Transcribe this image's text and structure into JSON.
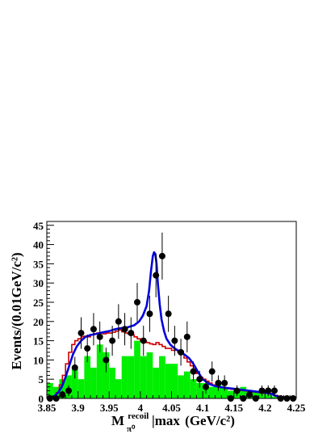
{
  "chart_data": {
    "type": "bar",
    "title": "",
    "xlabel": {
      "main": "M",
      "sup": "recoil",
      "sub": "π⁰",
      "tail": "|max",
      "unit": "(GeV/c²)"
    },
    "ylabel": "Events/(0.01GeV/c²)",
    "xlim": [
      3.85,
      4.25
    ],
    "ylim": [
      0,
      46
    ],
    "x_ticks": [
      3.85,
      3.9,
      3.95,
      4.0,
      4.05,
      4.1,
      4.15,
      4.2,
      4.25
    ],
    "x_tick_labels": [
      "3.85",
      "3.9",
      "3.95",
      "4",
      "4.05",
      "4.1",
      "4.15",
      "4.2",
      "4.25"
    ],
    "y_ticks": [
      0,
      5,
      10,
      15,
      20,
      25,
      30,
      35,
      40,
      45
    ],
    "y_tick_labels": [
      "0",
      "5",
      "10",
      "15",
      "20",
      "25",
      "30",
      "35",
      "40",
      "45"
    ],
    "grid": false,
    "colors": {
      "background_hist": "#00ee00",
      "signal_hist": "#cc0000",
      "fit": "#0000dd",
      "data": "#000000",
      "error_bar": "#000000"
    },
    "background_hist": {
      "bin_width": 0.01,
      "x": [
        3.855,
        3.865,
        3.875,
        3.885,
        3.895,
        3.905,
        3.915,
        3.925,
        3.935,
        3.945,
        3.955,
        3.965,
        3.975,
        3.985,
        3.995,
        4.005,
        4.015,
        4.025,
        4.035,
        4.045,
        4.055,
        4.065,
        4.075,
        4.085,
        4.095,
        4.105,
        4.115,
        4.125,
        4.135,
        4.145,
        4.155,
        4.165,
        4.175,
        4.185,
        4.195,
        4.205,
        4.215,
        4.225,
        4.235,
        4.245
      ],
      "values": [
        4,
        3,
        5,
        6,
        8,
        5,
        11,
        8,
        14,
        12,
        8,
        5,
        11,
        11,
        15,
        11,
        12,
        8,
        11,
        9,
        9,
        6,
        7,
        5,
        4,
        4,
        3,
        4,
        3,
        2,
        2,
        3,
        2,
        2,
        2,
        1,
        0.5,
        0.5,
        0.5,
        0.5
      ]
    },
    "signal_hist": {
      "bin_width": 0.005,
      "x": [
        3.8575,
        3.8625,
        3.8675,
        3.8725,
        3.8775,
        3.8825,
        3.8875,
        3.8925,
        3.8975,
        3.9025,
        3.9075,
        3.9125,
        3.9175,
        3.9225,
        3.9275,
        3.9325,
        3.9375,
        3.9425,
        3.9475,
        3.9525,
        3.9575,
        3.9625,
        3.9675,
        3.9725,
        3.9775,
        3.9825,
        3.9875,
        3.9925,
        3.9975,
        4.0025,
        4.0075,
        4.0125,
        4.0175,
        4.0225,
        4.0275,
        4.0325,
        4.0375,
        4.0425,
        4.0475,
        4.0525,
        4.0575,
        4.0625,
        4.0675,
        4.0725,
        4.0775,
        4.0825,
        4.0875,
        4.0925,
        4.0975,
        4.1025,
        4.1075,
        4.1125,
        4.1175,
        4.1225,
        4.1275,
        4.1325,
        4.1375,
        4.1425,
        4.1475,
        4.1525,
        4.1575,
        4.1625,
        4.1675,
        4.1725,
        4.1775,
        4.1825,
        4.1875,
        4.1925,
        4.1975,
        4.2025,
        4.2075,
        4.2125,
        4.2175,
        4.2225,
        4.2275,
        4.2325,
        4.2375,
        4.2425,
        4.2475
      ],
      "values": [
        0.2,
        0.5,
        1.5,
        3.5,
        6,
        9,
        12,
        14,
        15,
        15.5,
        16,
        16.2,
        16,
        16.5,
        16.8,
        17,
        17,
        16.8,
        17,
        17,
        17.2,
        17.5,
        17.8,
        17.3,
        17,
        16.8,
        16.5,
        16,
        15.5,
        15,
        14.8,
        14.5,
        14.2,
        14,
        14.5,
        14,
        13.5,
        13,
        13,
        12.5,
        12.5,
        12,
        11.5,
        10.5,
        9.5,
        8.5,
        7.5,
        6.5,
        5.5,
        5,
        4.5,
        4,
        3.5,
        3.2,
        3,
        2.8,
        2.6,
        2.5,
        2.4,
        2.3,
        2.2,
        2.1,
        2,
        1.9,
        1.8,
        1.7,
        1.6,
        1.5,
        1.4,
        1.3,
        1.2,
        1.0,
        0.8,
        0.6,
        0.4,
        0.3,
        0.2,
        0.1,
        0.1
      ]
    },
    "fit_curve": {
      "x": [
        3.855,
        3.862,
        3.868,
        3.874,
        3.88,
        3.886,
        3.892,
        3.898,
        3.905,
        3.912,
        3.92,
        3.93,
        3.94,
        3.95,
        3.96,
        3.97,
        3.98,
        3.99,
        3.998,
        4.004,
        4.01,
        4.014,
        4.017,
        4.02,
        4.022,
        4.024,
        4.026,
        4.028,
        4.031,
        4.034,
        4.038,
        4.042,
        4.048,
        4.055,
        4.062,
        4.07,
        4.078,
        4.085,
        4.092,
        4.1,
        4.11,
        4.12,
        4.13,
        4.14,
        4.15,
        4.16,
        4.17,
        4.18,
        4.19,
        4.2,
        4.21,
        4.215,
        4.222,
        4.23,
        4.24,
        4.25
      ],
      "y": [
        0.2,
        0.6,
        1.5,
        3,
        5.5,
        8.5,
        11.5,
        13.5,
        15,
        16,
        16.5,
        16.8,
        17.2,
        17.5,
        18,
        18.3,
        18.5,
        19,
        20,
        21.5,
        24,
        28,
        33,
        37,
        38,
        37.5,
        35,
        30,
        24.5,
        20.5,
        17.5,
        15.5,
        14,
        13,
        12.3,
        11.5,
        10.5,
        9,
        7,
        5,
        3.8,
        3.2,
        2.9,
        2.7,
        2.5,
        2.3,
        2.1,
        1.9,
        1.7,
        1.5,
        1.2,
        0.8,
        0.4,
        0.2,
        0.1,
        0
      ]
    },
    "data_points": {
      "x": [
        3.855,
        3.865,
        3.875,
        3.885,
        3.895,
        3.905,
        3.915,
        3.925,
        3.935,
        3.945,
        3.955,
        3.965,
        3.975,
        3.985,
        3.995,
        4.005,
        4.015,
        4.025,
        4.035,
        4.045,
        4.055,
        4.065,
        4.075,
        4.085,
        4.095,
        4.105,
        4.115,
        4.125,
        4.135,
        4.145,
        4.155,
        4.165,
        4.175,
        4.185,
        4.195,
        4.205,
        4.215,
        4.225,
        4.235,
        4.245
      ],
      "y": [
        0,
        0,
        1,
        2,
        8,
        17,
        13,
        18,
        16,
        10,
        15,
        20,
        18,
        17,
        25,
        15,
        22,
        32,
        37,
        22,
        15,
        12,
        16,
        7,
        5,
        3,
        7,
        4,
        4,
        0,
        2,
        0,
        1,
        0,
        2,
        2,
        2,
        0,
        0,
        0
      ],
      "err": [
        0,
        0,
        1,
        1.4,
        2.8,
        4.1,
        3.6,
        4.2,
        4,
        3.2,
        3.9,
        4.5,
        4.2,
        4.1,
        5,
        3.9,
        4.7,
        5.7,
        6.1,
        4.7,
        3.9,
        3.5,
        4,
        2.6,
        2.2,
        1.7,
        2.6,
        2,
        2,
        0,
        1.4,
        0,
        1,
        0,
        1.4,
        1.4,
        1.4,
        0,
        0,
        0
      ]
    }
  }
}
